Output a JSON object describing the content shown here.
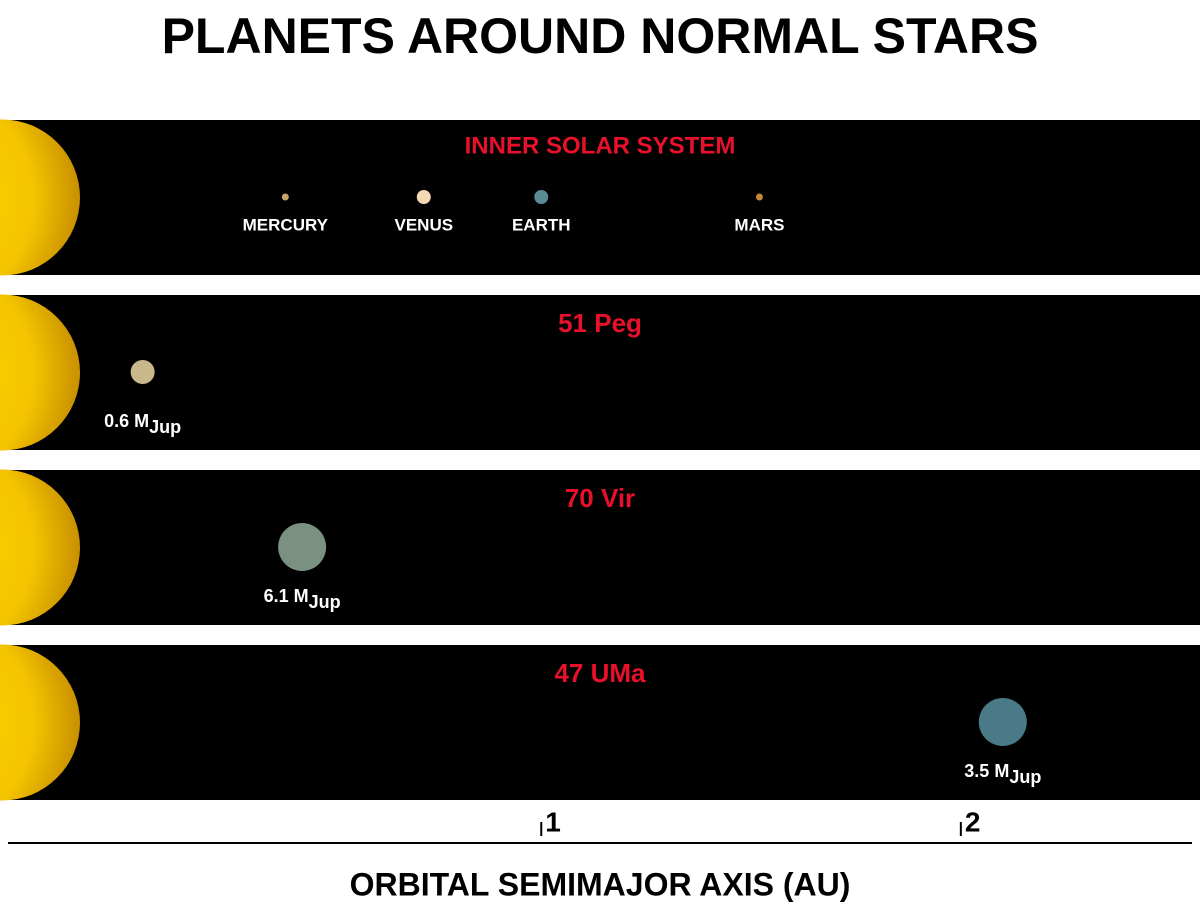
{
  "title": "PLANETS AROUND NORMAL STARS",
  "axis": {
    "label": "ORBITAL SEMIMAJOR AXIS (AU)",
    "xlim": [
      -0.29,
      2.57
    ],
    "xticks": [
      1,
      2
    ]
  },
  "mass_unit": "M",
  "mass_unit_sub": "Jup",
  "panels": [
    {
      "name": "INNER SOLAR SYSTEM",
      "planets": [
        {
          "label": "MERCURY",
          "a": 0.39,
          "color": "#c8a46a"
        },
        {
          "label": "VENUS",
          "a": 0.72,
          "color": "#f5d8b4"
        },
        {
          "label": "EARTH",
          "a": 1.0,
          "color": "#5a8a96"
        },
        {
          "label": "MARS",
          "a": 1.52,
          "color": "#c8883a"
        }
      ]
    },
    {
      "name": "51 Peg",
      "planets": [
        {
          "mass": 0.6,
          "a": 0.05,
          "color": "#c8b88a"
        }
      ]
    },
    {
      "name": "70 Vir",
      "planets": [
        {
          "mass": 6.1,
          "a": 0.43,
          "color": "#7a9080"
        }
      ]
    },
    {
      "name": "47 UMa",
      "planets": [
        {
          "mass": 3.5,
          "a": 2.1,
          "color": "#4a7a88"
        }
      ]
    }
  ]
}
